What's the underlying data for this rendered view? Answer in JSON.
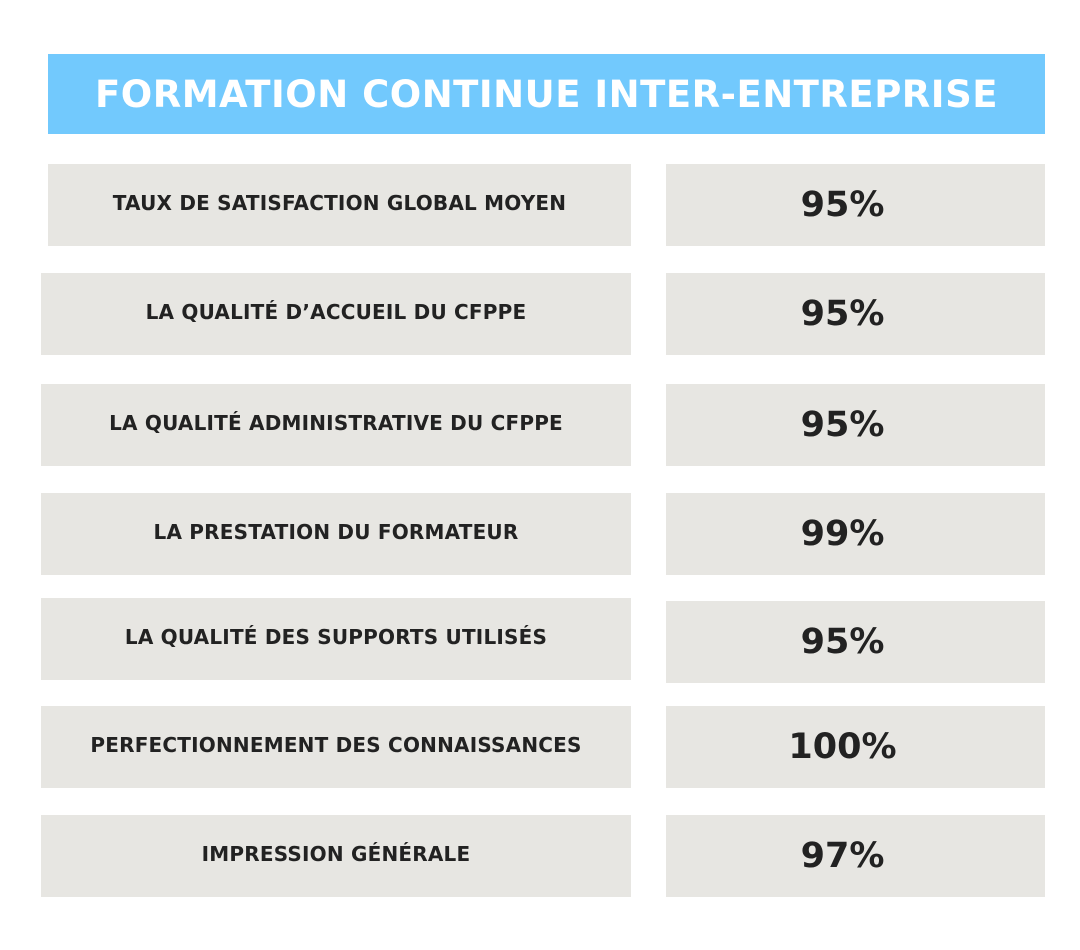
{
  "header": {
    "title": "FORMATION CONTINUE INTER-ENTREPRISE"
  },
  "rows": [
    {
      "label": "TAUX DE SATISFACTION GLOBAL MOYEN",
      "value": "95%"
    },
    {
      "label": "LA QUALITÉ D’ACCUEIL DU CFPPE",
      "value": "95%"
    },
    {
      "label": "LA QUALITÉ ADMINISTRATIVE DU CFPPE",
      "value": "95%"
    },
    {
      "label": "LA PRESTATION DU FORMATEUR",
      "value": "99%"
    },
    {
      "label": "LA QUALITÉ DES SUPPORTS UTILISÉS",
      "value": "95%"
    },
    {
      "label": "PERFECTIONNEMENT DES CONNAISSANCES",
      "value": "100%"
    },
    {
      "label": "IMPRESSION GÉNÉRALE",
      "value": "97%"
    }
  ],
  "colors": {
    "header_background": "#72c9fd",
    "cell_background": "#e7e6e2",
    "text": "#222222"
  }
}
